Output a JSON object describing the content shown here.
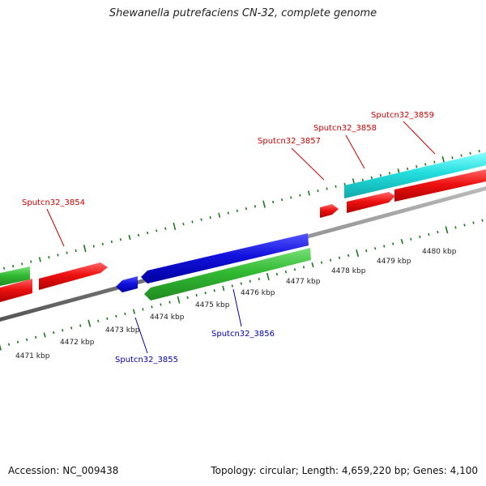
{
  "title": "Shewanella putrefaciens CN-32, complete genome",
  "footer": {
    "accession": "Accession: NC_009438",
    "summary": "Topology: circular; Length: 4,659,220 bp; Genes: 4,100"
  },
  "colors": {
    "backbone": "#888888",
    "tick": "#1a7a1a",
    "forward_label": "#cc0000",
    "reverse_label": "#0000aa",
    "red_feature": "#ee1111",
    "green_feature": "#33bb33",
    "blue_feature": "#1111dd",
    "cyan_feature": "#22dddd"
  },
  "kbp_labels": [
    "4471 kbp",
    "4472 kbp",
    "4473 kbp",
    "4474 kbp",
    "4475 kbp",
    "4476 kbp",
    "4477 kbp",
    "4478 kbp",
    "4479 kbp",
    "4480 kbp"
  ],
  "gene_labels": {
    "g3854": "Sputcn32_3854",
    "g3855": "Sputcn32_3855",
    "g3856": "Sputcn32_3856",
    "g3857": "Sputcn32_3857",
    "g3858": "Sputcn32_3858",
    "g3859": "Sputcn32_3859"
  }
}
